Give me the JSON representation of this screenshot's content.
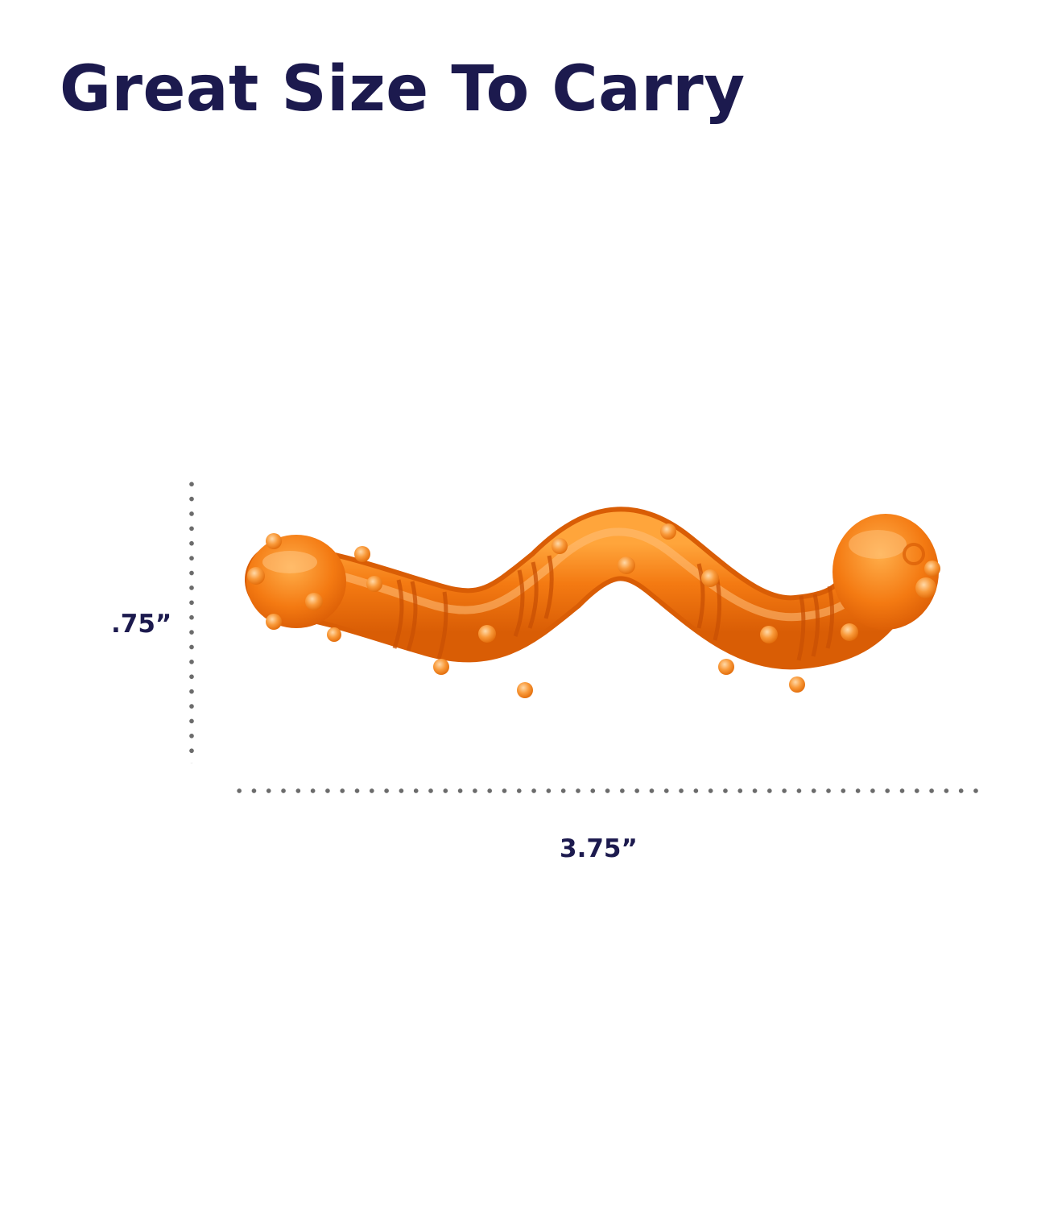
{
  "headline": "Great Size To Carry",
  "dimensions": {
    "height": ".75”",
    "length": "3.75”"
  },
  "colors": {
    "headline": "#1c1a4e",
    "toy": "#f47a12",
    "dots": "#6b6b6b"
  },
  "product": {
    "icon": "orange-worm-chew-toy"
  }
}
